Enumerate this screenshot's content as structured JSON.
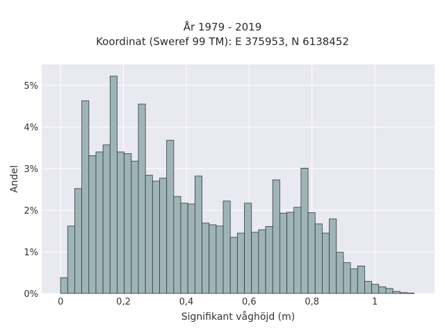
{
  "chart_data": {
    "type": "bar",
    "title": "År 1979 - 2019",
    "subtitle": "Koordinat (Sweref 99 TM): E 375953, N 6138452",
    "xlabel": "Signifikant våghöjd (m)",
    "ylabel": "Andel",
    "xlim": [
      -0.06,
      1.19
    ],
    "ylim": [
      0,
      5.5
    ],
    "x_ticks": [
      {
        "value": 0,
        "label": "0"
      },
      {
        "value": 0.2,
        "label": "0,2"
      },
      {
        "value": 0.4,
        "label": "0,4"
      },
      {
        "value": 0.6,
        "label": "0,6"
      },
      {
        "value": 0.8,
        "label": "0,8"
      },
      {
        "value": 1,
        "label": "1"
      }
    ],
    "y_ticks": [
      {
        "value": 0,
        "label": "0%"
      },
      {
        "value": 1,
        "label": "1%"
      },
      {
        "value": 2,
        "label": "2%"
      },
      {
        "value": 3,
        "label": "3%"
      },
      {
        "value": 4,
        "label": "4%"
      },
      {
        "value": 5,
        "label": "5%"
      }
    ],
    "bin_start": 0.0,
    "bin_width": 0.0225,
    "values": [
      0.38,
      1.62,
      2.52,
      4.63,
      3.31,
      3.4,
      3.57,
      5.22,
      3.4,
      3.36,
      3.18,
      4.55,
      2.84,
      2.7,
      2.77,
      3.68,
      2.33,
      2.17,
      2.15,
      2.82,
      1.69,
      1.65,
      1.62,
      2.22,
      1.35,
      1.45,
      2.17,
      1.47,
      1.53,
      1.61,
      2.73,
      1.93,
      1.95,
      2.07,
      3.01,
      1.94,
      1.67,
      1.45,
      1.79,
      0.99,
      0.74,
      0.59,
      0.66,
      0.29,
      0.22,
      0.16,
      0.12,
      0.05,
      0.02,
      0.01
    ],
    "colors": {
      "bar_fill": "#9fb4b6",
      "bar_stroke": "#2e3a3b",
      "plot_background": "#e9e9f1",
      "grid": "#ffffff"
    },
    "grid": true
  }
}
